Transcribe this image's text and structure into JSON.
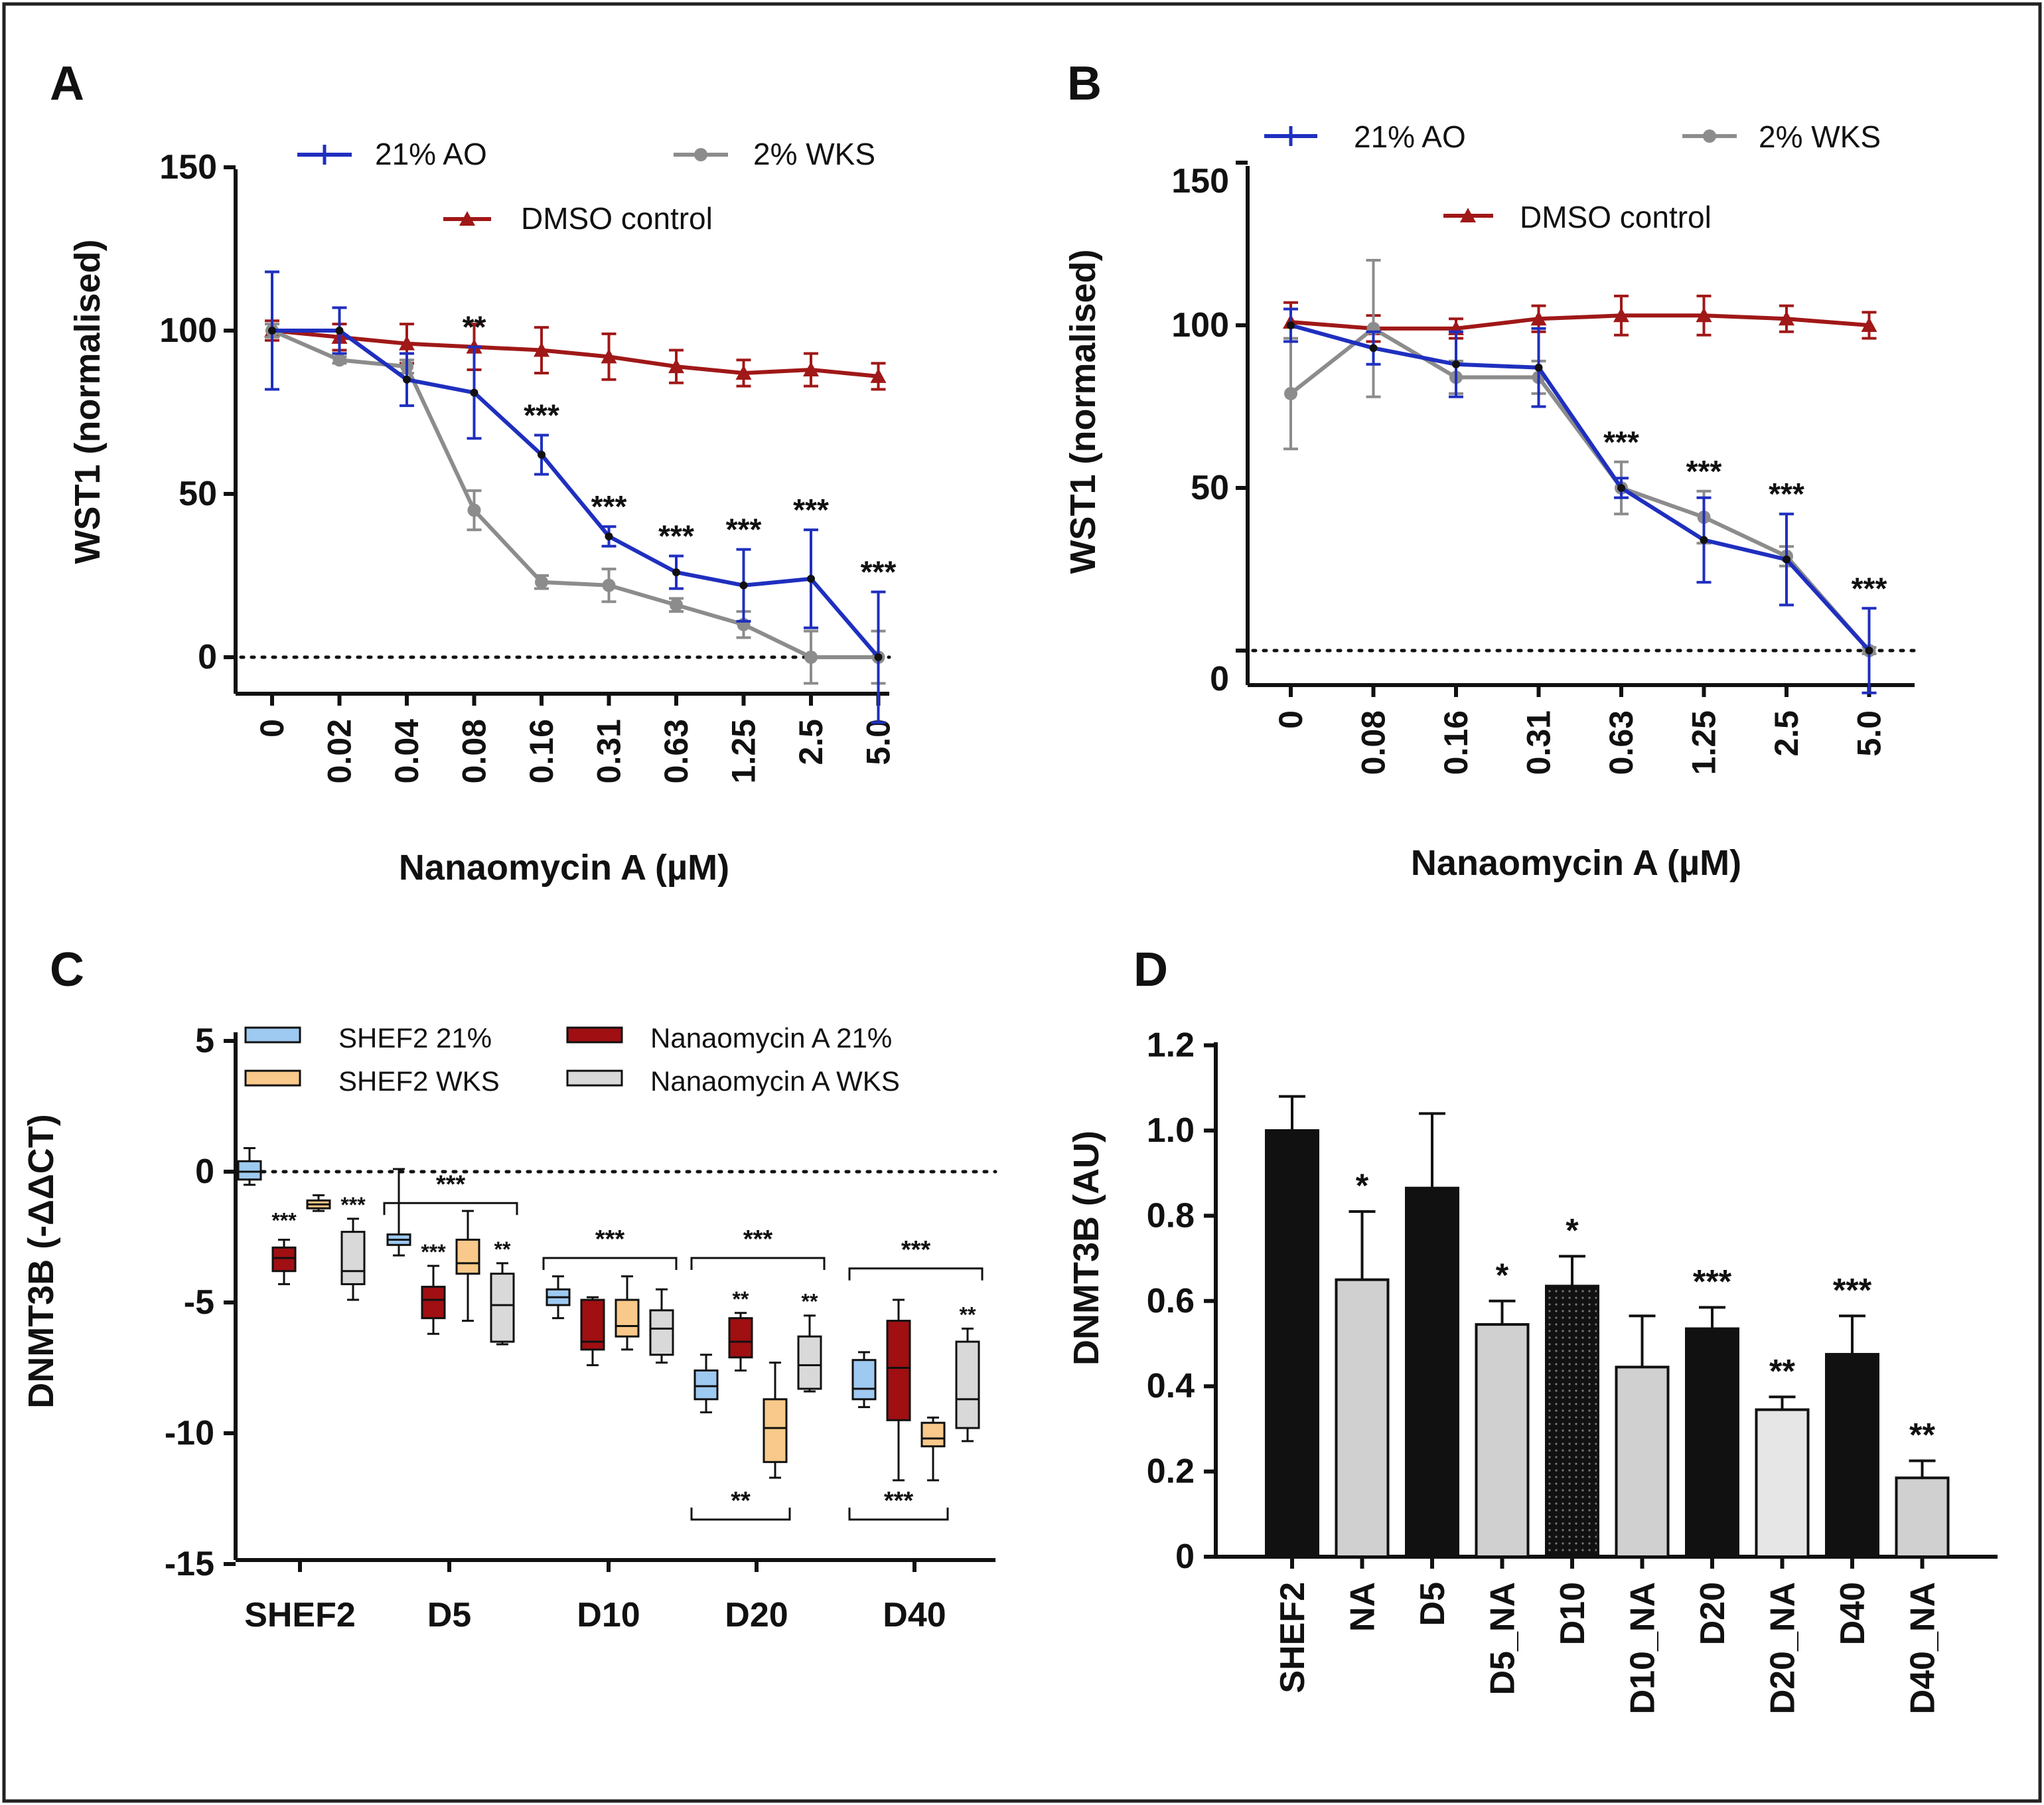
{
  "colors": {
    "blue": "#1f2fbf",
    "gray": "#8c8c8c",
    "darkred": "#a01818",
    "black": "#111111",
    "box_blue": "#9ec9f0",
    "box_red": "#a00f12",
    "box_orange": "#f8c98a",
    "box_gray": "#d9d9d9",
    "bar_gray": "#d0d0d0",
    "red_star": "#c0141c"
  },
  "chart_data": [
    {
      "panel": "A",
      "type": "line",
      "ylabel": "WST1 (normalised)",
      "xlabel": "Nanaomycin A (µM)",
      "ylim": [
        -10,
        150
      ],
      "yticks": [
        "150",
        "100",
        "50",
        "0"
      ],
      "categories": [
        "0",
        "0.02",
        "0.04",
        "0.08",
        "0.16",
        "0.31",
        "0.63",
        "1.25",
        "2.5",
        "5.0"
      ],
      "legend": [
        "21% AO",
        "2% WKS",
        "DMSO control"
      ],
      "series": [
        {
          "name": "21% AO",
          "values": [
            100,
            100,
            85,
            81,
            62,
            37,
            26,
            22,
            24,
            0
          ],
          "errors": [
            18,
            7,
            8,
            14,
            6,
            3,
            5,
            11,
            15,
            20
          ]
        },
        {
          "name": "2% WKS",
          "values": [
            100,
            91,
            89,
            45,
            23,
            22,
            16,
            10,
            0,
            0
          ],
          "errors": [
            2,
            1,
            2,
            6,
            2,
            5,
            2,
            4,
            8,
            8
          ]
        },
        {
          "name": "DMSO control",
          "values": [
            100,
            98,
            96,
            95,
            94,
            92,
            89,
            87,
            88,
            86
          ],
          "errors": [
            3,
            4,
            6,
            7,
            7,
            7,
            5,
            4,
            5,
            4
          ]
        }
      ],
      "annotations": [
        "",
        "",
        "",
        "**",
        "***",
        "***",
        "***",
        "***",
        "***",
        "***"
      ]
    },
    {
      "panel": "B",
      "type": "line",
      "ylabel": "WST1 (normalised)",
      "xlabel": "Nanaomycin A (µM)",
      "ylim": [
        -10,
        150
      ],
      "yticks": [
        "150",
        "100",
        "50",
        "0"
      ],
      "categories": [
        "0",
        "0.08",
        "0.16",
        "0.31",
        "0.63",
        "1.25",
        "2.5",
        "5.0"
      ],
      "legend": [
        "21% AO",
        "2% WKS",
        "DMSO control"
      ],
      "series": [
        {
          "name": "21% AO",
          "values": [
            100,
            93,
            88,
            87,
            50,
            34,
            28,
            0
          ],
          "errors": [
            5,
            5,
            10,
            12,
            3,
            13,
            14,
            13
          ]
        },
        {
          "name": "2% WKS",
          "values": [
            79,
            99,
            84,
            84,
            50,
            41,
            29,
            0
          ],
          "errors": [
            17,
            21,
            5,
            5,
            8,
            8,
            3,
            1
          ]
        },
        {
          "name": "DMSO control",
          "values": [
            101,
            99,
            99,
            102,
            103,
            103,
            102,
            100
          ],
          "errors": [
            6,
            4,
            3,
            4,
            6,
            6,
            4,
            4
          ]
        }
      ],
      "annotations": [
        "",
        "",
        "",
        "",
        "***",
        "***",
        "***",
        "***"
      ]
    },
    {
      "panel": "C",
      "type": "box",
      "ylabel": "DNMT3B (-ΔΔCT)",
      "ylim": [
        -15,
        5
      ],
      "yticks": [
        "5",
        "0",
        "-5",
        "-10",
        "-15"
      ],
      "categories": [
        "SHEF2",
        "D5",
        "D10",
        "D20",
        "D40"
      ],
      "legend": [
        "SHEF2 21%",
        "Nanaomycin A 21%",
        "SHEF2 WKS",
        "Nanaomycin A WKS"
      ],
      "boxes": [
        {
          "group": 0,
          "series": 0,
          "min": -0.5,
          "q1": -0.3,
          "med": 0,
          "q3": 0.4,
          "max": 0.9
        },
        {
          "group": 0,
          "series": 1,
          "min": -4.3,
          "q1": -3.8,
          "med": -3.3,
          "q3": -2.9,
          "max": -2.6
        },
        {
          "group": 0,
          "series": 2,
          "min": -1.5,
          "q1": -1.4,
          "med": -1.25,
          "q3": -1.1,
          "max": -0.9
        },
        {
          "group": 0,
          "series": 3,
          "min": -4.9,
          "q1": -4.3,
          "med": -3.8,
          "q3": -2.3,
          "max": -1.8
        },
        {
          "group": 1,
          "series": 0,
          "min": -3.2,
          "q1": -2.8,
          "med": -2.6,
          "q3": -2.4,
          "max": 0.1
        },
        {
          "group": 1,
          "series": 1,
          "min": -6.2,
          "q1": -5.6,
          "med": -4.9,
          "q3": -4.4,
          "max": -3.6
        },
        {
          "group": 1,
          "series": 2,
          "min": -5.7,
          "q1": -3.9,
          "med": -3.5,
          "q3": -2.6,
          "max": -1.5
        },
        {
          "group": 1,
          "series": 3,
          "min": -6.6,
          "q1": -6.5,
          "med": -5.1,
          "q3": -3.9,
          "max": -3.5
        },
        {
          "group": 2,
          "series": 0,
          "min": -5.6,
          "q1": -5.1,
          "med": -4.8,
          "q3": -4.5,
          "max": -4.0
        },
        {
          "group": 2,
          "series": 1,
          "min": -7.4,
          "q1": -6.8,
          "med": -6.5,
          "q3": -4.9,
          "max": -4.8
        },
        {
          "group": 2,
          "series": 2,
          "min": -6.8,
          "q1": -6.3,
          "med": -5.9,
          "q3": -4.9,
          "max": -4.0
        },
        {
          "group": 2,
          "series": 3,
          "min": -7.3,
          "q1": -7.0,
          "med": -6.0,
          "q3": -5.3,
          "max": -4.5
        },
        {
          "group": 3,
          "series": 0,
          "min": -9.2,
          "q1": -8.7,
          "med": -8.2,
          "q3": -7.6,
          "max": -7.0
        },
        {
          "group": 3,
          "series": 1,
          "min": -7.6,
          "q1": -7.1,
          "med": -6.5,
          "q3": -5.6,
          "max": -5.4
        },
        {
          "group": 3,
          "series": 2,
          "min": -11.7,
          "q1": -11.1,
          "med": -9.8,
          "q3": -8.7,
          "max": -7.3
        },
        {
          "group": 3,
          "series": 3,
          "min": -8.4,
          "q1": -8.3,
          "med": -7.4,
          "q3": -6.3,
          "max": -5.5
        },
        {
          "group": 4,
          "series": 0,
          "min": -9.0,
          "q1": -8.7,
          "med": -8.3,
          "q3": -7.2,
          "max": -6.9
        },
        {
          "group": 4,
          "series": 1,
          "min": -11.8,
          "q1": -9.5,
          "med": -7.5,
          "q3": -5.7,
          "max": -4.9
        },
        {
          "group": 4,
          "series": 2,
          "min": -11.8,
          "q1": -10.5,
          "med": -10.2,
          "q3": -9.6,
          "max": -9.4
        },
        {
          "group": 4,
          "series": 3,
          "min": -10.3,
          "q1": -9.8,
          "med": -8.7,
          "q3": -6.5,
          "max": -6.0
        }
      ],
      "box_stars": [
        "",
        "***",
        "",
        "***",
        "",
        "***",
        "",
        "**",
        "",
        "",
        "",
        "",
        "",
        "**",
        "",
        "**",
        "",
        "",
        "",
        "**"
      ],
      "brackets": [
        {
          "label": "***",
          "from": [
            1,
            0
          ],
          "to": [
            1,
            3
          ],
          "y": -1.2,
          "dir": "up"
        },
        {
          "label": "***",
          "from": [
            2,
            0
          ],
          "to": [
            2,
            3
          ],
          "y": -3.3,
          "dir": "up"
        },
        {
          "label": "***",
          "from": [
            3,
            0
          ],
          "to": [
            3,
            3
          ],
          "y": -3.3,
          "dir": "up"
        },
        {
          "label": "***",
          "from": [
            4,
            0
          ],
          "to": [
            4,
            3
          ],
          "y": -3.7,
          "dir": "up"
        },
        {
          "label": "**",
          "from": [
            3,
            0
          ],
          "to": [
            3,
            2
          ],
          "y": -13.3,
          "dir": "down"
        },
        {
          "label": "***",
          "from": [
            4,
            0
          ],
          "to": [
            4,
            2
          ],
          "y": -13.3,
          "dir": "down"
        }
      ]
    },
    {
      "panel": "D",
      "type": "bar",
      "ylabel": "DNMT3B (AU)",
      "ylim": [
        0,
        1.2
      ],
      "yticks": [
        "1.2",
        "1.0",
        "0.8",
        "0.6",
        "0.4",
        "0.2",
        "0"
      ],
      "categories": [
        "SHEF2",
        "NA",
        "D5",
        "D5_NA",
        "D10",
        "D10_NA",
        "D20",
        "D20_NA",
        "D40",
        "D40_NA"
      ],
      "values": [
        1.0,
        0.65,
        0.865,
        0.545,
        0.635,
        0.445,
        0.535,
        0.345,
        0.475,
        0.185
      ],
      "errors": [
        0.08,
        0.16,
        0.175,
        0.055,
        0.07,
        0.12,
        0.05,
        0.03,
        0.09,
        0.04
      ],
      "fills": [
        "black",
        "gray",
        "black",
        "gray",
        "dotted",
        "gray",
        "black",
        "lightgray",
        "black",
        "gray"
      ],
      "stars": [
        "",
        "*",
        "",
        "*",
        "*",
        "",
        "***",
        "**",
        "***",
        "**"
      ],
      "star_colors": [
        "black",
        "black",
        "black",
        "black",
        "red",
        "black",
        "red",
        "black",
        "red",
        "black"
      ]
    }
  ],
  "panel_labels": [
    "A",
    "B",
    "C",
    "D"
  ]
}
